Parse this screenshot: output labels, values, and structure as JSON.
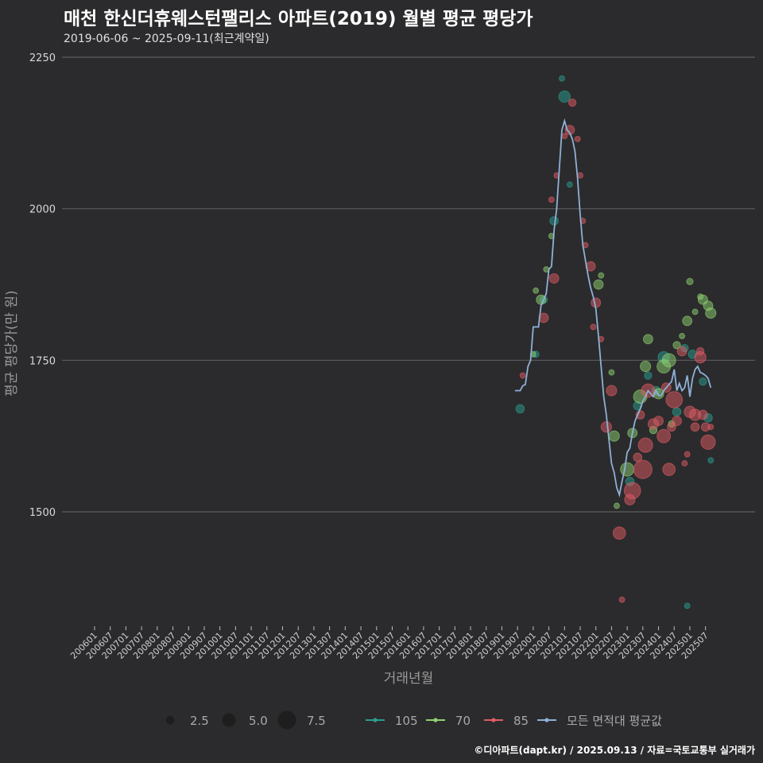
{
  "title": "매천 한신더휴웨스턴팰리스 아파트(2019) 월별 평균 평당가",
  "subtitle": "2019-06-06 ~ 2025-09-11(최근계약일)",
  "caption": "©디아파트(dapt.kr) / 2025.09.13 / 자료=국토교통부 실거래가",
  "chart_data": {
    "type": "scatter",
    "xlabel": "거래년월",
    "ylabel": "평균 평당가(만 원)",
    "ylim": [
      1320,
      2250
    ],
    "yticks": [
      1500,
      1750,
      2000,
      2250
    ],
    "x_range_months": [
      "2006-01",
      "2025-09"
    ],
    "xticks": [
      "200601",
      "200607",
      "200701",
      "200707",
      "200801",
      "200807",
      "200901",
      "200907",
      "201001",
      "201007",
      "201101",
      "201107",
      "201201",
      "201207",
      "201301",
      "201307",
      "201401",
      "201407",
      "201501",
      "201507",
      "201601",
      "201607",
      "201701",
      "201707",
      "201801",
      "201807",
      "201901",
      "201907",
      "202001",
      "202007",
      "202101",
      "202107",
      "202201",
      "202207",
      "202301",
      "202307",
      "202401",
      "202407",
      "202501",
      "202507"
    ],
    "grid": "horizontal",
    "legend_size": {
      "title": "size",
      "items": [
        {
          "label": "2.5",
          "value": 2.5
        },
        {
          "label": "5.0",
          "value": 5.0
        },
        {
          "label": "7.5",
          "value": 7.5
        }
      ]
    },
    "legend_series": [
      {
        "label": "105",
        "color": "#2a9d8f"
      },
      {
        "label": "70",
        "color": "#8ed16f"
      },
      {
        "label": "85",
        "color": "#e05c63"
      },
      {
        "label": "모든 면적대 평균값",
        "color": "#8fb0d6"
      }
    ],
    "series": [
      {
        "name": "105",
        "color": "#2a9d8f",
        "points": [
          {
            "x": "2019-08",
            "y": 1670,
            "size": 2.5
          },
          {
            "x": "2020-02",
            "y": 1760,
            "size": 1.5
          },
          {
            "x": "2020-05",
            "y": 1850,
            "size": 2.0
          },
          {
            "x": "2020-09",
            "y": 1980,
            "size": 2.5
          },
          {
            "x": "2020-12",
            "y": 2215,
            "size": 1.0
          },
          {
            "x": "2021-01",
            "y": 2185,
            "size": 4.0
          },
          {
            "x": "2021-03",
            "y": 2040,
            "size": 1.0
          },
          {
            "x": "2023-02",
            "y": 1550,
            "size": 2.5
          },
          {
            "x": "2023-05",
            "y": 1675,
            "size": 2.5
          },
          {
            "x": "2023-09",
            "y": 1725,
            "size": 2.0
          },
          {
            "x": "2023-12",
            "y": 1700,
            "size": 2.5
          },
          {
            "x": "2024-03",
            "y": 1755,
            "size": 4.0
          },
          {
            "x": "2024-08",
            "y": 1665,
            "size": 2.5
          },
          {
            "x": "2024-11",
            "y": 1770,
            "size": 2.0
          },
          {
            "x": "2025-02",
            "y": 1760,
            "size": 2.5
          },
          {
            "x": "2025-06",
            "y": 1715,
            "size": 2.0
          },
          {
            "x": "2025-08",
            "y": 1655,
            "size": 2.5
          },
          {
            "x": "2025-09",
            "y": 1585,
            "size": 1.0
          },
          {
            "x": "2024-12",
            "y": 1345,
            "size": 1.0
          }
        ]
      },
      {
        "name": "70",
        "color": "#8ed16f",
        "points": [
          {
            "x": "2020-01",
            "y": 1760,
            "size": 1.0
          },
          {
            "x": "2020-02",
            "y": 1865,
            "size": 1.0
          },
          {
            "x": "2020-04",
            "y": 1850,
            "size": 3.0
          },
          {
            "x": "2020-06",
            "y": 1900,
            "size": 1.0
          },
          {
            "x": "2020-08",
            "y": 1955,
            "size": 1.0
          },
          {
            "x": "2022-02",
            "y": 1875,
            "size": 3.0
          },
          {
            "x": "2022-03",
            "y": 1890,
            "size": 1.0
          },
          {
            "x": "2022-07",
            "y": 1730,
            "size": 1.0
          },
          {
            "x": "2022-08",
            "y": 1625,
            "size": 3.5
          },
          {
            "x": "2022-09",
            "y": 1510,
            "size": 1.0
          },
          {
            "x": "2023-01",
            "y": 1570,
            "size": 5.0
          },
          {
            "x": "2023-03",
            "y": 1630,
            "size": 3.0
          },
          {
            "x": "2023-06",
            "y": 1690,
            "size": 5.0
          },
          {
            "x": "2023-08",
            "y": 1740,
            "size": 3.5
          },
          {
            "x": "2023-09",
            "y": 1785,
            "size": 3.0
          },
          {
            "x": "2023-11",
            "y": 1635,
            "size": 2.0
          },
          {
            "x": "2024-01",
            "y": 1695,
            "size": 3.5
          },
          {
            "x": "2024-03",
            "y": 1740,
            "size": 5.0
          },
          {
            "x": "2024-05",
            "y": 1750,
            "size": 5.0
          },
          {
            "x": "2024-06",
            "y": 1645,
            "size": 1.5
          },
          {
            "x": "2024-08",
            "y": 1775,
            "size": 2.0
          },
          {
            "x": "2024-10",
            "y": 1790,
            "size": 1.0
          },
          {
            "x": "2024-12",
            "y": 1815,
            "size": 3.0
          },
          {
            "x": "2025-01",
            "y": 1880,
            "size": 1.5
          },
          {
            "x": "2025-03",
            "y": 1830,
            "size": 1.0
          },
          {
            "x": "2025-05",
            "y": 1855,
            "size": 1.0
          },
          {
            "x": "2025-06",
            "y": 1850,
            "size": 3.0
          },
          {
            "x": "2025-08",
            "y": 1840,
            "size": 3.0
          },
          {
            "x": "2025-09",
            "y": 1828,
            "size": 3.5
          }
        ]
      },
      {
        "name": "85",
        "color": "#e05c63",
        "points": [
          {
            "x": "2019-09",
            "y": 1725,
            "size": 1.0
          },
          {
            "x": "2020-05",
            "y": 1820,
            "size": 3.0
          },
          {
            "x": "2020-08",
            "y": 2015,
            "size": 1.0
          },
          {
            "x": "2020-09",
            "y": 1885,
            "size": 3.0
          },
          {
            "x": "2020-10",
            "y": 2055,
            "size": 1.0
          },
          {
            "x": "2021-01",
            "y": 2120,
            "size": 1.0
          },
          {
            "x": "2021-03",
            "y": 2130,
            "size": 3.0
          },
          {
            "x": "2021-04",
            "y": 2175,
            "size": 2.0
          },
          {
            "x": "2021-06",
            "y": 2115,
            "size": 1.0
          },
          {
            "x": "2021-07",
            "y": 2055,
            "size": 1.0
          },
          {
            "x": "2021-08",
            "y": 1980,
            "size": 1.0
          },
          {
            "x": "2021-09",
            "y": 1940,
            "size": 1.0
          },
          {
            "x": "2021-11",
            "y": 1905,
            "size": 3.0
          },
          {
            "x": "2021-12",
            "y": 1805,
            "size": 1.0
          },
          {
            "x": "2022-01",
            "y": 1845,
            "size": 3.0
          },
          {
            "x": "2022-03",
            "y": 1785,
            "size": 1.0
          },
          {
            "x": "2022-05",
            "y": 1640,
            "size": 3.5
          },
          {
            "x": "2022-07",
            "y": 1700,
            "size": 3.5
          },
          {
            "x": "2022-10",
            "y": 1465,
            "size": 4.5
          },
          {
            "x": "2022-11",
            "y": 1355,
            "size": 1.0
          },
          {
            "x": "2023-02",
            "y": 1520,
            "size": 3.5
          },
          {
            "x": "2023-03",
            "y": 1535,
            "size": 6.5
          },
          {
            "x": "2023-05",
            "y": 1590,
            "size": 2.5
          },
          {
            "x": "2023-06",
            "y": 1660,
            "size": 2.5
          },
          {
            "x": "2023-07",
            "y": 1570,
            "size": 7.5
          },
          {
            "x": "2023-08",
            "y": 1610,
            "size": 5.5
          },
          {
            "x": "2023-09",
            "y": 1700,
            "size": 5.0
          },
          {
            "x": "2023-11",
            "y": 1645,
            "size": 3.5
          },
          {
            "x": "2024-01",
            "y": 1650,
            "size": 3.0
          },
          {
            "x": "2024-03",
            "y": 1625,
            "size": 5.0
          },
          {
            "x": "2024-04",
            "y": 1705,
            "size": 3.0
          },
          {
            "x": "2024-05",
            "y": 1570,
            "size": 4.5
          },
          {
            "x": "2024-06",
            "y": 1640,
            "size": 2.5
          },
          {
            "x": "2024-07",
            "y": 1685,
            "size": 6.5
          },
          {
            "x": "2024-08",
            "y": 1650,
            "size": 3.0
          },
          {
            "x": "2024-10",
            "y": 1765,
            "size": 3.0
          },
          {
            "x": "2024-11",
            "y": 1580,
            "size": 1.0
          },
          {
            "x": "2024-12",
            "y": 1595,
            "size": 1.0
          },
          {
            "x": "2025-01",
            "y": 1665,
            "size": 4.0
          },
          {
            "x": "2025-03",
            "y": 1660,
            "size": 4.0
          },
          {
            "x": "2025-03",
            "y": 1640,
            "size": 2.5
          },
          {
            "x": "2025-05",
            "y": 1755,
            "size": 4.0
          },
          {
            "x": "2025-05",
            "y": 1765,
            "size": 2.0
          },
          {
            "x": "2025-06",
            "y": 1660,
            "size": 3.0
          },
          {
            "x": "2025-07",
            "y": 1640,
            "size": 2.5
          },
          {
            "x": "2025-08",
            "y": 1615,
            "size": 5.5
          },
          {
            "x": "2025-09",
            "y": 1640,
            "size": 1.0
          }
        ]
      }
    ],
    "avg_line": {
      "name": "모든 면적대 평균값",
      "color": "#8fb0d6",
      "points": [
        {
          "x": "2019-06",
          "y": 1700
        },
        {
          "x": "2019-08",
          "y": 1700
        },
        {
          "x": "2019-09",
          "y": 1708
        },
        {
          "x": "2019-10",
          "y": 1710
        },
        {
          "x": "2019-11",
          "y": 1740
        },
        {
          "x": "2019-12",
          "y": 1750
        },
        {
          "x": "2020-01",
          "y": 1805
        },
        {
          "x": "2020-03",
          "y": 1805
        },
        {
          "x": "2020-04",
          "y": 1840
        },
        {
          "x": "2020-05",
          "y": 1850
        },
        {
          "x": "2020-06",
          "y": 1860
        },
        {
          "x": "2020-07",
          "y": 1900
        },
        {
          "x": "2020-08",
          "y": 1905
        },
        {
          "x": "2020-09",
          "y": 1965
        },
        {
          "x": "2020-10",
          "y": 2000
        },
        {
          "x": "2020-11",
          "y": 2065
        },
        {
          "x": "2020-12",
          "y": 2130
        },
        {
          "x": "2021-01",
          "y": 2145
        },
        {
          "x": "2021-02",
          "y": 2130
        },
        {
          "x": "2021-03",
          "y": 2125
        },
        {
          "x": "2021-04",
          "y": 2115
        },
        {
          "x": "2021-05",
          "y": 2095
        },
        {
          "x": "2021-06",
          "y": 2050
        },
        {
          "x": "2021-07",
          "y": 1990
        },
        {
          "x": "2021-08",
          "y": 1940
        },
        {
          "x": "2021-09",
          "y": 1915
        },
        {
          "x": "2021-10",
          "y": 1890
        },
        {
          "x": "2021-11",
          "y": 1870
        },
        {
          "x": "2021-12",
          "y": 1855
        },
        {
          "x": "2022-01",
          "y": 1835
        },
        {
          "x": "2022-02",
          "y": 1790
        },
        {
          "x": "2022-03",
          "y": 1740
        },
        {
          "x": "2022-04",
          "y": 1690
        },
        {
          "x": "2022-05",
          "y": 1660
        },
        {
          "x": "2022-06",
          "y": 1620
        },
        {
          "x": "2022-07",
          "y": 1580
        },
        {
          "x": "2022-08",
          "y": 1565
        },
        {
          "x": "2022-09",
          "y": 1540
        },
        {
          "x": "2022-10",
          "y": 1528
        },
        {
          "x": "2022-11",
          "y": 1550
        },
        {
          "x": "2022-12",
          "y": 1570
        },
        {
          "x": "2023-01",
          "y": 1598
        },
        {
          "x": "2023-02",
          "y": 1605
        },
        {
          "x": "2023-03",
          "y": 1630
        },
        {
          "x": "2023-04",
          "y": 1650
        },
        {
          "x": "2023-05",
          "y": 1660
        },
        {
          "x": "2023-06",
          "y": 1670
        },
        {
          "x": "2023-07",
          "y": 1683
        },
        {
          "x": "2023-08",
          "y": 1690
        },
        {
          "x": "2023-09",
          "y": 1700
        },
        {
          "x": "2023-10",
          "y": 1695
        },
        {
          "x": "2023-11",
          "y": 1690
        },
        {
          "x": "2023-12",
          "y": 1700
        },
        {
          "x": "2024-01",
          "y": 1692
        },
        {
          "x": "2024-02",
          "y": 1692
        },
        {
          "x": "2024-03",
          "y": 1700
        },
        {
          "x": "2024-04",
          "y": 1705
        },
        {
          "x": "2024-05",
          "y": 1710
        },
        {
          "x": "2024-06",
          "y": 1715
        },
        {
          "x": "2024-07",
          "y": 1735
        },
        {
          "x": "2024-08",
          "y": 1700
        },
        {
          "x": "2024-09",
          "y": 1712
        },
        {
          "x": "2024-10",
          "y": 1700
        },
        {
          "x": "2024-11",
          "y": 1705
        },
        {
          "x": "2024-12",
          "y": 1725
        },
        {
          "x": "2025-01",
          "y": 1690
        },
        {
          "x": "2025-02",
          "y": 1720
        },
        {
          "x": "2025-03",
          "y": 1735
        },
        {
          "x": "2025-04",
          "y": 1740
        },
        {
          "x": "2025-05",
          "y": 1730
        },
        {
          "x": "2025-06",
          "y": 1728
        },
        {
          "x": "2025-07",
          "y": 1725
        },
        {
          "x": "2025-08",
          "y": 1720
        },
        {
          "x": "2025-09",
          "y": 1705
        }
      ]
    }
  }
}
